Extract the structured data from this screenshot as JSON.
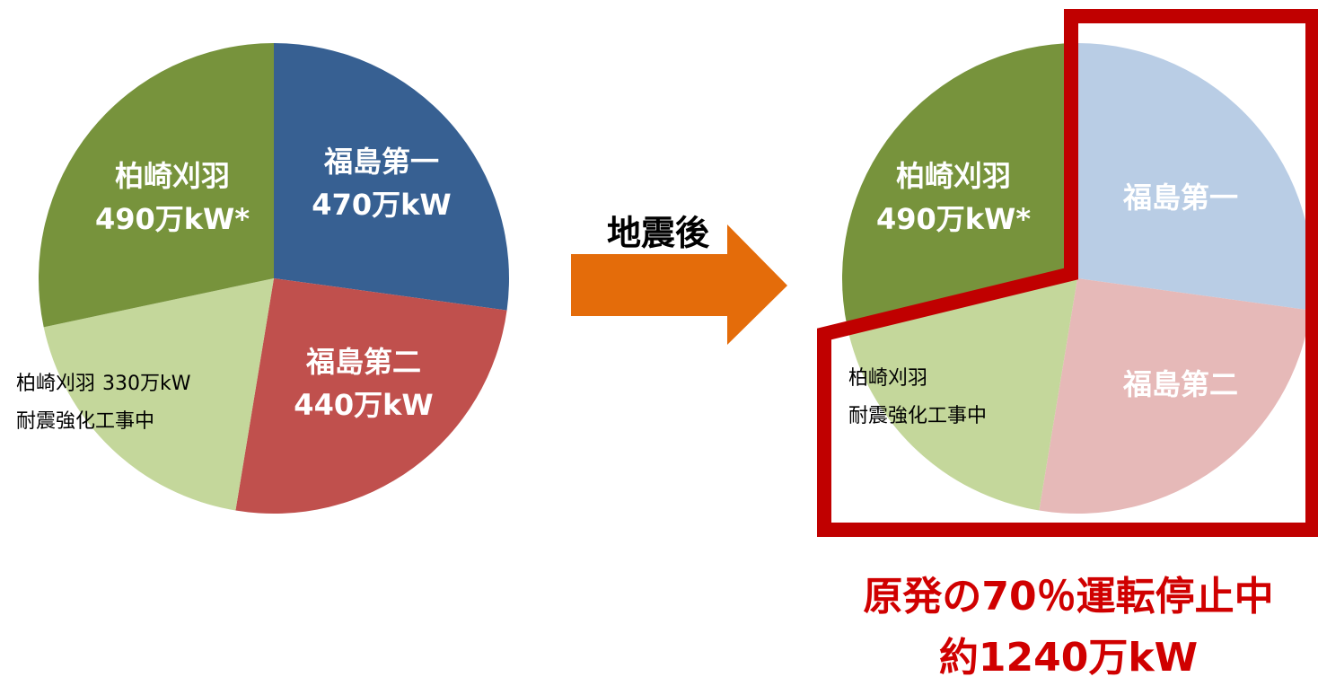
{
  "chart_data": [
    {
      "type": "pie",
      "categories": [
        "福島第一",
        "福島第二",
        "柏崎刈羽",
        "柏崎刈羽"
      ],
      "values": [
        470,
        440,
        330,
        490
      ],
      "value_labels": [
        "470万kW",
        "440万kW",
        "330万kW",
        "490万kW*"
      ],
      "notes": [
        null,
        null,
        "耐震強化工事中",
        null
      ],
      "colors": [
        "#376092",
        "#c0504d",
        "#c4d79b",
        "#77933c"
      ]
    },
    {
      "type": "pie",
      "categories": [
        "福島第一",
        "福島第二",
        "柏崎刈羽",
        "柏崎刈羽"
      ],
      "values": [
        470,
        440,
        330,
        490
      ],
      "value_labels": [
        null,
        null,
        null,
        "490万kW*"
      ],
      "notes": [
        null,
        null,
        "耐震強化工事中",
        null
      ],
      "colors": [
        "#b9cde5",
        "#e6b9b8",
        "#c4d79b",
        "#77933c"
      ]
    }
  ],
  "arrow_label": "地震後",
  "callout": [
    "原発の70％運転停止中",
    "約1240万kW"
  ]
}
